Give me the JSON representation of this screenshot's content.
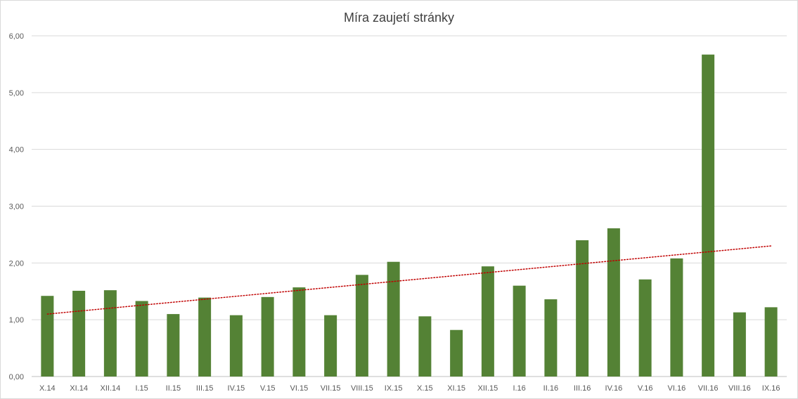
{
  "chart_data": {
    "type": "bar",
    "title": "Míra zaujetí stránky",
    "xlabel": "",
    "ylabel": "",
    "ylim": [
      0,
      6
    ],
    "yticks": [
      "0,00",
      "1,00",
      "2,00",
      "3,00",
      "4,00",
      "5,00",
      "6,00"
    ],
    "ytick_values": [
      0,
      1,
      2,
      3,
      4,
      5,
      6
    ],
    "grid": true,
    "legend": "none",
    "categories": [
      "X.14",
      "XI.14",
      "XII.14",
      "I.15",
      "II.15",
      "III.15",
      "IV.15",
      "V.15",
      "VI.15",
      "VII.15",
      "VIII.15",
      "IX.15",
      "X.15",
      "XI.15",
      "XII.15",
      "I.16",
      "II.16",
      "III.16",
      "IV.16",
      "V.16",
      "VI.16",
      "VII.16",
      "VIII.16",
      "IX.16"
    ],
    "values": [
      1.42,
      1.51,
      1.52,
      1.33,
      1.1,
      1.39,
      1.08,
      1.4,
      1.57,
      1.08,
      1.79,
      2.02,
      1.06,
      0.82,
      1.94,
      1.6,
      1.36,
      2.4,
      2.61,
      1.71,
      2.08,
      5.67,
      1.13,
      1.22
    ],
    "bar_color": "#548235",
    "trendline": {
      "type": "linear",
      "color": "#c00000",
      "style": "dotted",
      "start": 1.1,
      "end": 2.3
    }
  }
}
